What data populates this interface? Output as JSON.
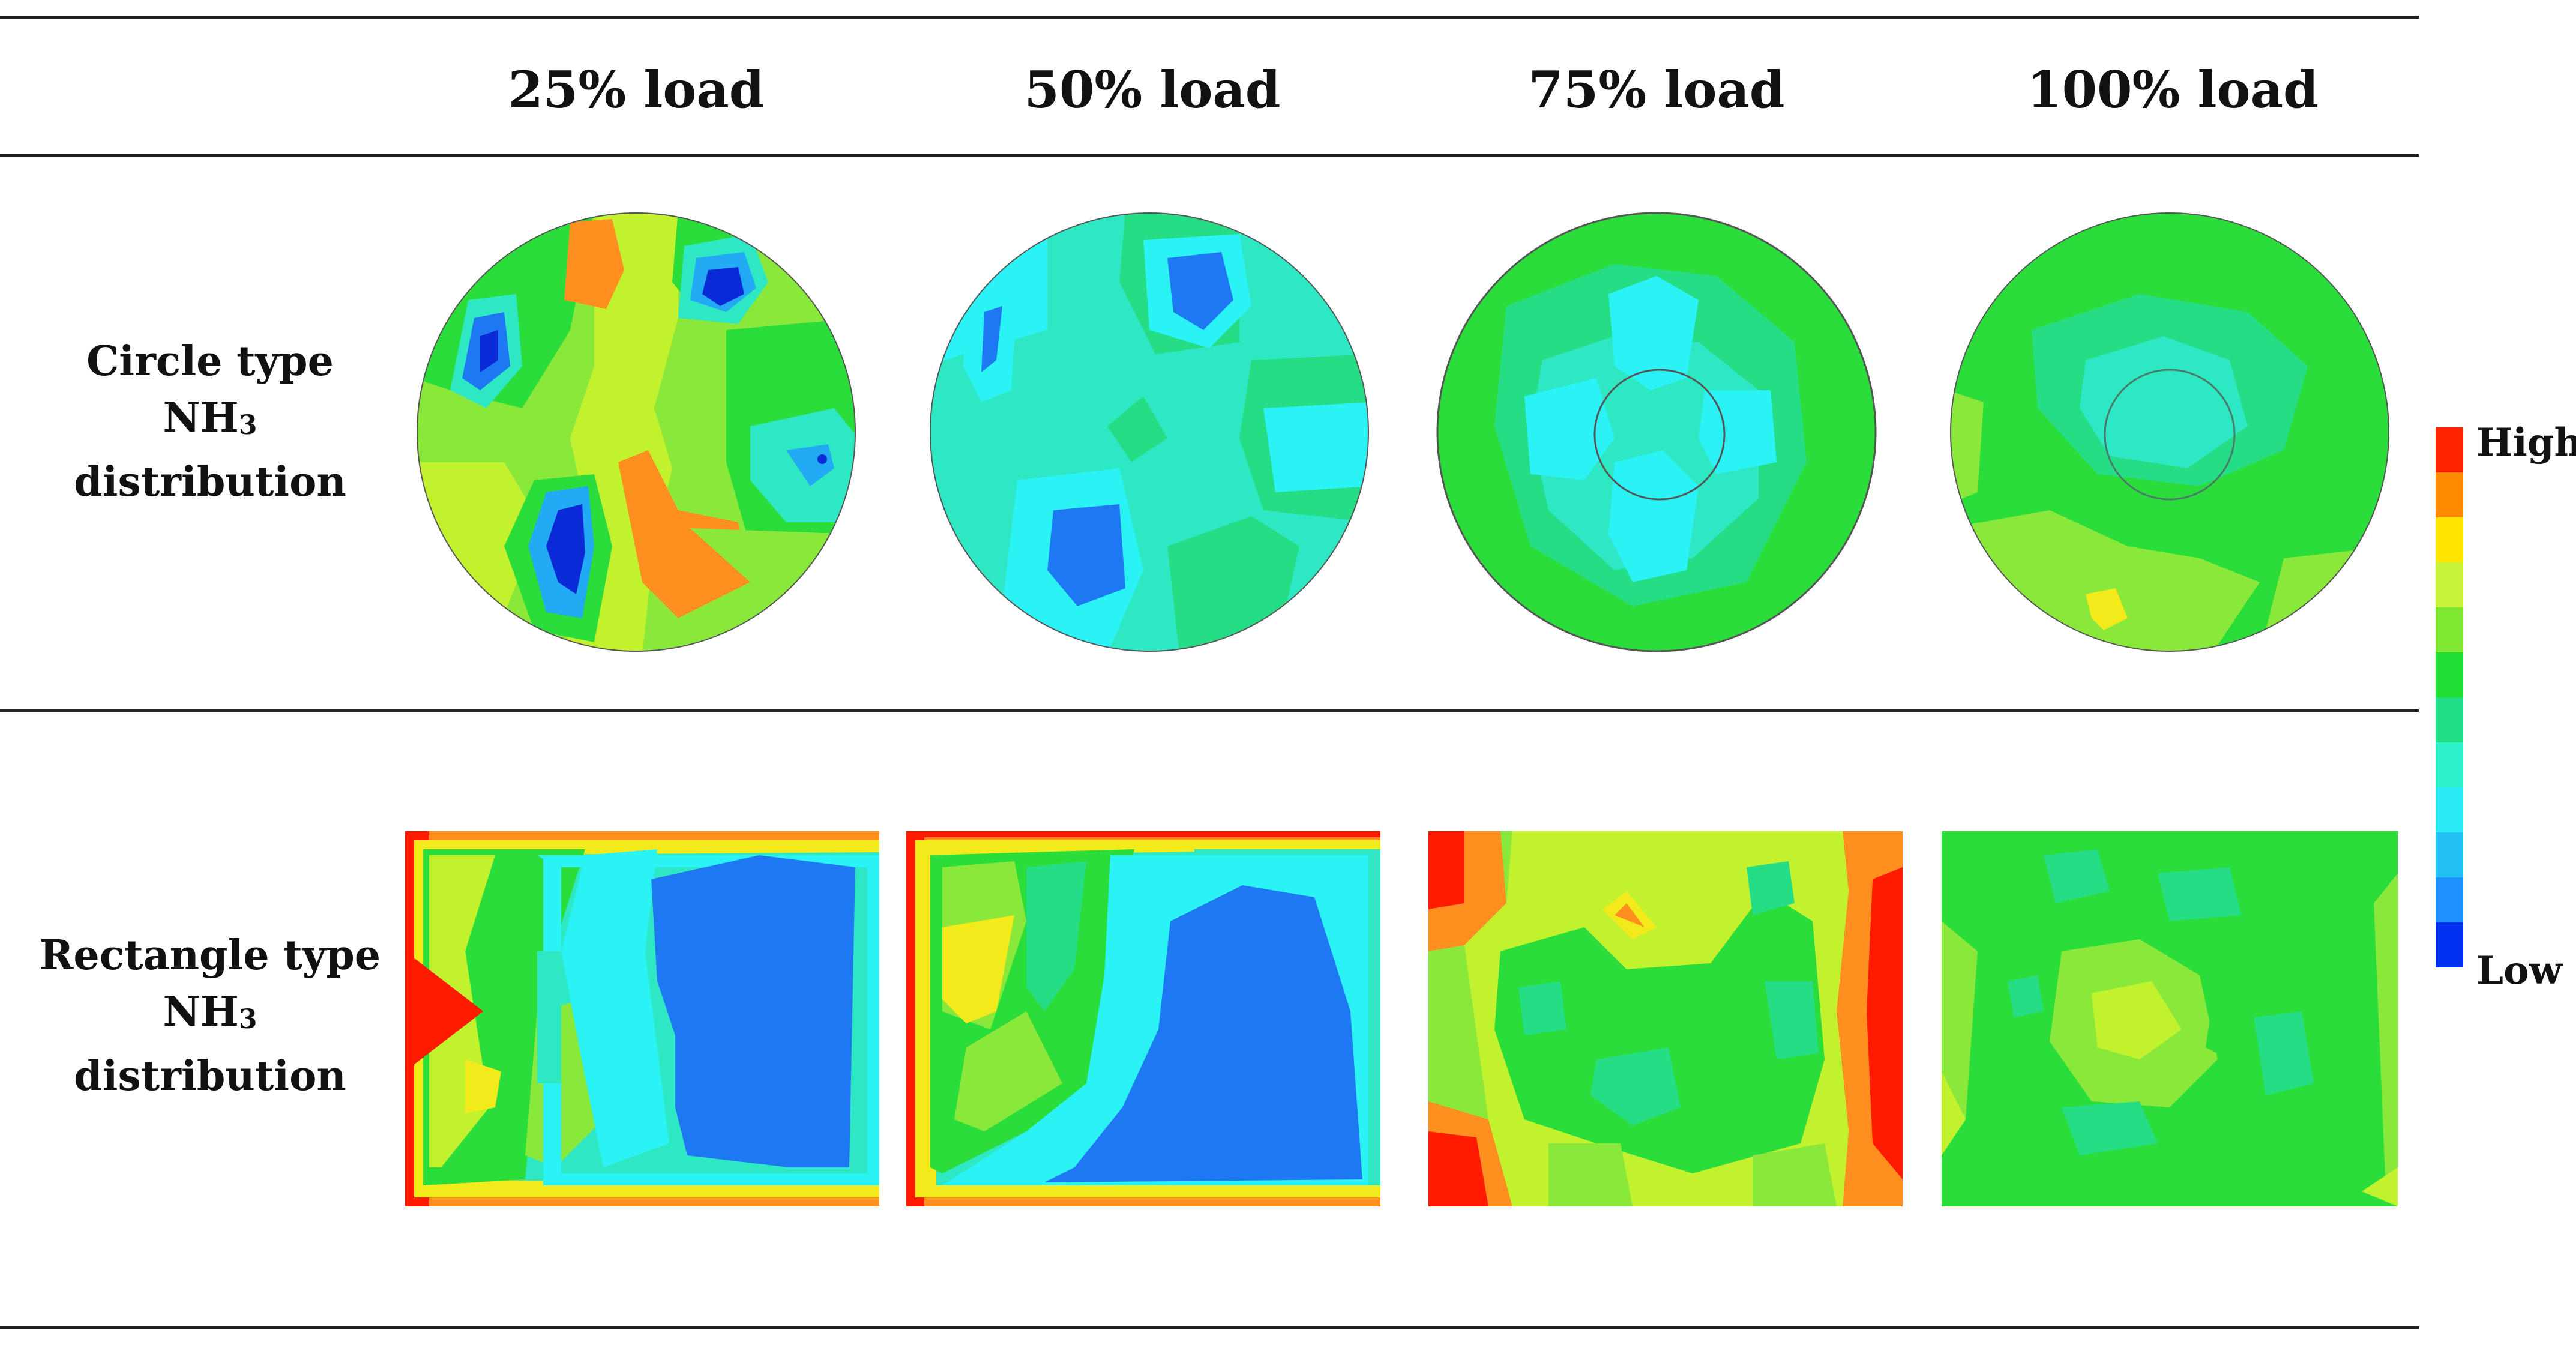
{
  "columns": [
    "25% load",
    "50% load",
    "75% load",
    "100% load"
  ],
  "rows": [
    {
      "line1": "Circle type",
      "line2_main": "NH",
      "line2_sub": "3",
      "line3": "distribution"
    },
    {
      "line1": "Rectangle type",
      "line2_main": "NH",
      "line2_sub": "3",
      "line3": "distribution"
    }
  ],
  "legend": {
    "high_label": "High",
    "low_label": "Low",
    "colors": [
      "#ff2400",
      "#ff8c00",
      "#ffe600",
      "#c6f23a",
      "#7fe632",
      "#22dd33",
      "#22dd88",
      "#2ef0c8",
      "#28e9f5",
      "#22c0f5",
      "#1e90ff",
      "#0030f0"
    ]
  },
  "palette": {
    "red": "#ff1a00",
    "orange": "#ff9020",
    "yellow": "#f2ea1a",
    "yellowgreen": "#c2f22e",
    "lime": "#8ae83a",
    "green": "#2bdd3a",
    "seagreen": "#25dd85",
    "teal": "#2ee8c4",
    "cyan": "#2bf2f5",
    "sky": "#22aaf5",
    "blue": "#1e78f2",
    "deepblue": "#0a2ad8"
  }
}
